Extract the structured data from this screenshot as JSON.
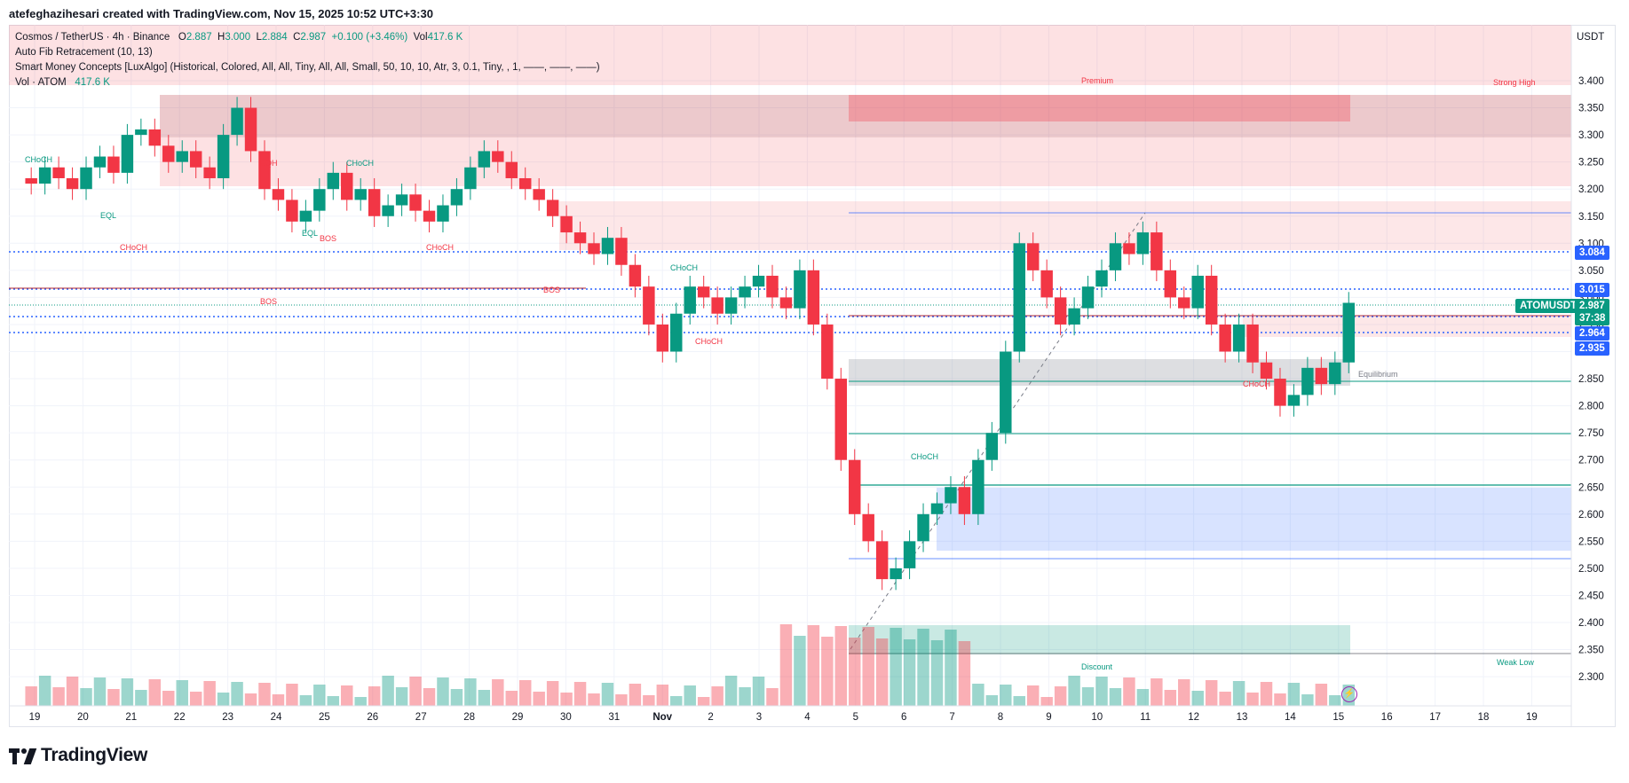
{
  "header": {
    "author_line": "atefeghazihesari created with TradingView.com, Nov 15, 2025 10:52 UTC+3:30"
  },
  "legend": {
    "symbol": "Cosmos / TetherUS · 4h · Binance",
    "open_label": "O",
    "open": "2.887",
    "high_label": "H",
    "high": "3.000",
    "low_label": "L",
    "low": "2.884",
    "close_label": "C",
    "close": "2.987",
    "change": "+0.100 (+3.46%)",
    "vol_label": "Vol",
    "vol": "417.6 K",
    "indicator1": "Auto Fib Retracement (10, 13)",
    "indicator2": "Smart Money Concepts [LuxAlgo] (Historical, Colored, All, All, Tiny, All, All, Small, 50, 10, 10, Atr, 3, 0.1, Tiny, , 1, ——, ——, ——)",
    "indicator3_label": "Vol · ATOM",
    "indicator3_value": "417.6 K"
  },
  "axis": {
    "currency": "USDT",
    "price_ticks": [
      "3.400",
      "3.350",
      "3.300",
      "3.250",
      "3.200",
      "3.150",
      "3.100",
      "3.050",
      "3.000",
      "2.950",
      "2.900",
      "2.850",
      "2.800",
      "2.750",
      "2.700",
      "2.650",
      "2.600",
      "2.550",
      "2.500",
      "2.450",
      "2.400",
      "2.350",
      "2.300"
    ],
    "time_ticks": [
      "19",
      "20",
      "21",
      "22",
      "23",
      "24",
      "25",
      "26",
      "27",
      "28",
      "29",
      "30",
      "31",
      "Nov",
      "2",
      "3",
      "4",
      "5",
      "6",
      "7",
      "8",
      "9",
      "10",
      "11",
      "12",
      "13",
      "14",
      "15",
      "16",
      "17",
      "18",
      "19"
    ]
  },
  "price_tags": {
    "t1": "3.084",
    "t2": "3.015",
    "symbol_tag": "ATOMUSDT",
    "last": "2.987",
    "countdown": "37:38",
    "t3": "2.964",
    "t4": "2.935"
  },
  "annotations": {
    "premium": "Premium",
    "strong_high": "Strong High",
    "equilibrium": "Equilibrium",
    "discount": "Discount",
    "weak_low": "Weak Low",
    "choch": "CHoCH",
    "bos": "BOS",
    "eqh": "EQH",
    "eql": "EQL"
  },
  "colors": {
    "up": "#089981",
    "down": "#f23645",
    "blue_tag": "#2962ff"
  },
  "footer": {
    "brand": "TradingView"
  }
}
